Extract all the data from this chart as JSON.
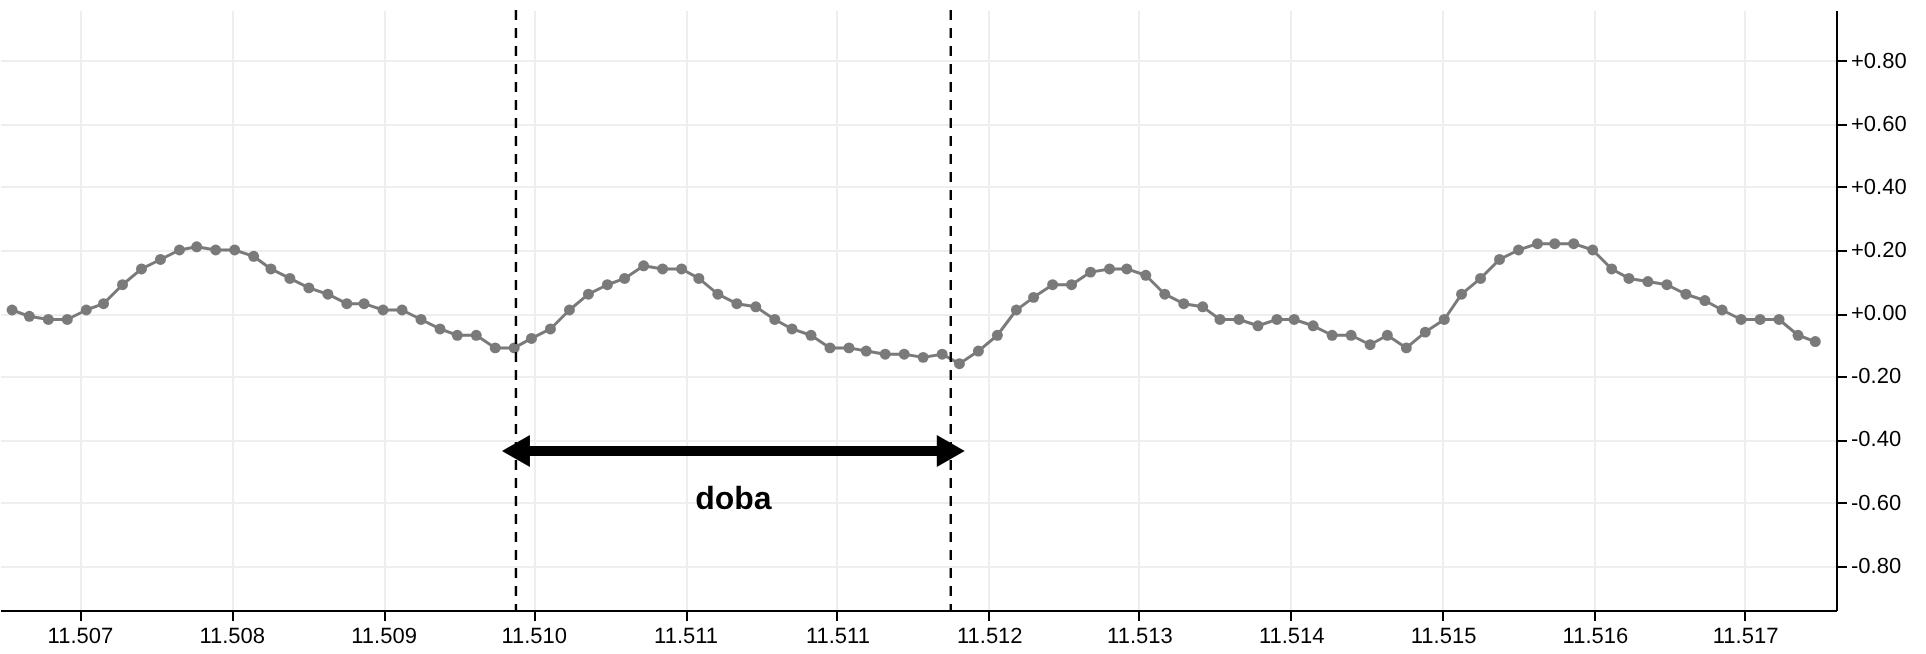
{
  "chart_data": {
    "type": "line",
    "x": [
      11.5067,
      11.5068,
      11.50691,
      11.50702,
      11.50713,
      11.50723,
      11.50734,
      11.50745,
      11.50756,
      11.50767,
      11.50777,
      11.50788,
      11.50799,
      11.5081,
      11.5082,
      11.50831,
      11.50842,
      11.50853,
      11.50864,
      11.50874,
      11.50885,
      11.50896,
      11.50907,
      11.50918,
      11.50928,
      11.50939,
      11.5095,
      11.50961,
      11.50971,
      11.50982,
      11.50993,
      11.51004,
      11.51015,
      11.51025,
      11.51036,
      11.51047,
      11.51058,
      11.51068,
      11.51079,
      11.5109,
      11.51101,
      11.51112,
      11.51122,
      11.51133,
      11.51144,
      11.51155,
      11.51165,
      11.51176,
      11.51187,
      11.51198,
      11.51209,
      11.51219,
      11.5123,
      11.51241,
      11.51252,
      11.51262,
      11.51273,
      11.51284,
      11.51295,
      11.51306,
      11.51316,
      11.51327,
      11.51338,
      11.51349,
      11.5136,
      11.5137,
      11.51381,
      11.51392,
      11.51403,
      11.51413,
      11.51424,
      11.51435,
      11.51446,
      11.51457,
      11.51467,
      11.51478,
      11.51489,
      11.515,
      11.5151,
      11.51521,
      11.51532,
      11.51543,
      11.51554,
      11.51564,
      11.51575,
      11.51586,
      11.51597,
      11.51607,
      11.51618,
      11.51629,
      11.5164,
      11.51651,
      11.51661,
      11.51672,
      11.51683,
      11.51694,
      11.51705,
      11.51715
    ],
    "series": [
      {
        "color": "#7a7a7a",
        "values": [
          0.01,
          -0.01,
          -0.02,
          -0.02,
          0.01,
          0.03,
          0.09,
          0.14,
          0.17,
          0.2,
          0.21,
          0.2,
          0.2,
          0.18,
          0.14,
          0.11,
          0.08,
          0.06,
          0.03,
          0.03,
          0.01,
          0.01,
          -0.02,
          -0.05,
          -0.07,
          -0.07,
          -0.11,
          -0.11,
          -0.08,
          -0.05,
          0.01,
          0.06,
          0.09,
          0.11,
          0.15,
          0.14,
          0.14,
          0.11,
          0.06,
          0.03,
          0.02,
          -0.02,
          -0.05,
          -0.07,
          -0.11,
          -0.11,
          -0.12,
          -0.13,
          -0.13,
          -0.14,
          -0.13,
          -0.16,
          -0.12,
          -0.07,
          0.01,
          0.05,
          0.09,
          0.09,
          0.13,
          0.14,
          0.14,
          0.12,
          0.06,
          0.03,
          0.02,
          -0.02,
          -0.02,
          -0.04,
          -0.02,
          -0.02,
          -0.04,
          -0.07,
          -0.07,
          -0.1,
          -0.07,
          -0.11,
          -0.06,
          -0.02,
          0.06,
          0.11,
          0.17,
          0.2,
          0.22,
          0.22,
          0.22,
          0.2,
          0.14,
          0.11,
          0.1,
          0.09,
          0.06,
          0.04,
          0.01,
          -0.02,
          -0.02,
          -0.02,
          -0.07,
          -0.09
        ]
      }
    ],
    "xlim": [
      11.50663,
      11.51727
    ],
    "xticks": [
      {
        "value": 11.50709,
        "label": "11.507"
      },
      {
        "value": 11.50797,
        "label": "11.508"
      },
      {
        "value": 11.50885,
        "label": "11.509"
      },
      {
        "value": 11.50972,
        "label": "11.510"
      },
      {
        "value": 11.5106,
        "label": "11.511"
      },
      {
        "value": 11.51148,
        "label": "11.511"
      },
      {
        "value": 11.51236,
        "label": "11.512"
      },
      {
        "value": 11.51323,
        "label": "11.513"
      },
      {
        "value": 11.51411,
        "label": "11.514"
      },
      {
        "value": 11.51499,
        "label": "11.515"
      },
      {
        "value": 11.51587,
        "label": "11.516"
      },
      {
        "value": 11.51674,
        "label": "11.517"
      }
    ],
    "ylim": [
      -0.94,
      0.96
    ],
    "yticks": [
      {
        "value": 0.8,
        "label": "+0.80"
      },
      {
        "value": 0.6,
        "label": "+0.60"
      },
      {
        "value": 0.4,
        "label": "+0.40"
      },
      {
        "value": 0.2,
        "label": "+0.20"
      },
      {
        "value": 0,
        "label": "+0.00"
      },
      {
        "value": -0.2,
        "label": "-0.20"
      },
      {
        "value": -0.4,
        "label": "-0.40"
      },
      {
        "value": -0.6,
        "label": "-0.60"
      },
      {
        "value": -0.8,
        "label": "-0.80"
      }
    ],
    "grid": true,
    "marker": "circle",
    "line_style": "solid",
    "ref_lines": [
      {
        "axis": "x",
        "value": 11.50962,
        "color": "#000000",
        "line_style": "dashed"
      },
      {
        "axis": "x",
        "value": 11.51214,
        "color": "#000000",
        "line_style": "dashed"
      }
    ],
    "annotations": [
      "doba"
    ]
  }
}
